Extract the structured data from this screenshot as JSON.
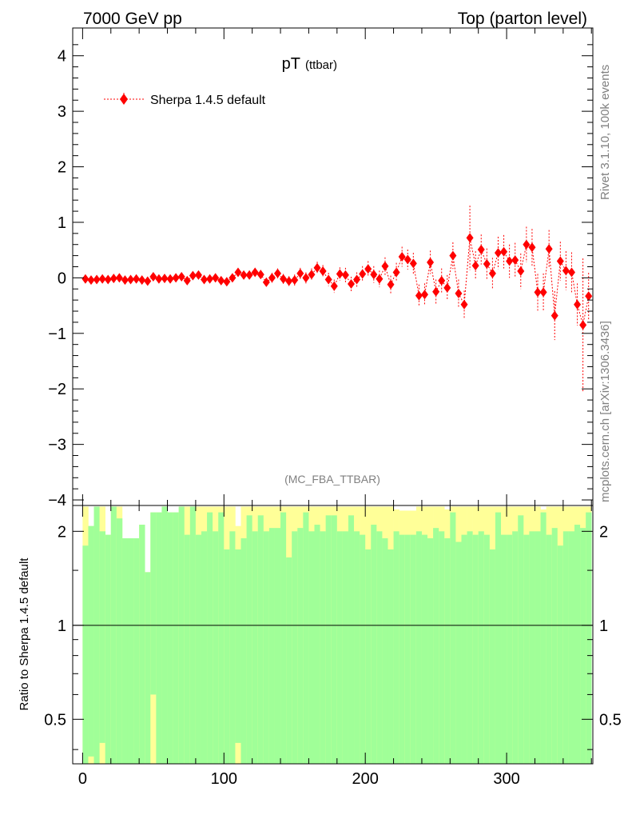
{
  "header": {
    "left": "7000 GeV pp",
    "right": "Top (parton level)"
  },
  "side_labels": {
    "rivet": "Rivet 3.1.10,  100k events",
    "mcplots": "mcplots.cern.ch [arXiv:1306.3436]"
  },
  "main_plot": {
    "title_main": "pT",
    "title_sub": "(ttbar)",
    "analysis_label": "(MC_FBA_TTBAR)",
    "legend_label": "Sherpa 1.4.5 default"
  },
  "ratio_plot": {
    "ylabel": "Ratio to Sherpa 1.4.5 default",
    "reference_line": 1
  },
  "colors": {
    "series": "#ff0000",
    "band_inner": "#a0ff98",
    "band_outer": "#ffff98"
  },
  "chart_data": [
    {
      "type": "scatter",
      "series": [
        {
          "name": "Sherpa 1.4.5 default",
          "x": [
            2,
            6,
            10,
            14,
            18,
            22,
            26,
            30,
            34,
            38,
            42,
            46,
            50,
            54,
            58,
            62,
            66,
            70,
            74,
            78,
            82,
            86,
            90,
            94,
            98,
            102,
            106,
            110,
            114,
            118,
            122,
            126,
            130,
            134,
            138,
            142,
            146,
            150,
            154,
            158,
            162,
            166,
            170,
            174,
            178,
            182,
            186,
            190,
            194,
            198,
            202,
            206,
            210,
            214,
            218,
            222,
            226,
            230,
            234,
            238,
            242,
            246,
            250,
            254,
            258,
            262,
            266,
            270,
            274,
            278,
            282,
            286,
            290,
            294,
            298,
            302,
            306,
            310,
            314,
            318,
            322,
            326,
            330,
            334,
            338,
            342,
            346,
            350,
            354,
            358
          ],
          "y": [
            -0.02,
            -0.04,
            -0.03,
            -0.02,
            -0.03,
            -0.01,
            0.0,
            -0.04,
            -0.03,
            -0.02,
            -0.04,
            -0.06,
            0.02,
            -0.02,
            -0.01,
            -0.02,
            0.0,
            0.02,
            -0.05,
            0.04,
            0.05,
            -0.03,
            -0.02,
            0.0,
            -0.05,
            -0.07,
            0.0,
            0.1,
            0.05,
            0.05,
            0.1,
            0.06,
            -0.08,
            0.0,
            0.08,
            -0.02,
            -0.06,
            -0.04,
            0.08,
            0.0,
            0.06,
            0.18,
            0.12,
            -0.03,
            -0.15,
            0.07,
            0.05,
            -0.11,
            -0.03,
            0.07,
            0.16,
            0.06,
            -0.02,
            0.21,
            -0.12,
            0.1,
            0.38,
            0.33,
            0.26,
            -0.32,
            -0.3,
            0.28,
            -0.25,
            -0.05,
            -0.18,
            0.4,
            -0.28,
            -0.48,
            0.72,
            0.22,
            0.51,
            0.25,
            0.08,
            0.45,
            0.47,
            0.3,
            0.32,
            0.12,
            0.6,
            0.55,
            -0.26,
            -0.26,
            0.52,
            -0.68,
            0.3,
            0.13,
            0.1,
            -0.48,
            -0.85,
            -0.33
          ],
          "yerr": [
            0.03,
            0.03,
            0.03,
            0.03,
            0.03,
            0.03,
            0.04,
            0.04,
            0.04,
            0.04,
            0.04,
            0.05,
            0.05,
            0.05,
            0.05,
            0.05,
            0.05,
            0.06,
            0.06,
            0.06,
            0.06,
            0.06,
            0.06,
            0.06,
            0.07,
            0.07,
            0.07,
            0.07,
            0.07,
            0.08,
            0.08,
            0.08,
            0.08,
            0.09,
            0.09,
            0.09,
            0.09,
            0.1,
            0.1,
            0.1,
            0.11,
            0.11,
            0.11,
            0.12,
            0.12,
            0.12,
            0.13,
            0.13,
            0.13,
            0.14,
            0.14,
            0.15,
            0.15,
            0.16,
            0.16,
            0.17,
            0.18,
            0.18,
            0.19,
            0.2,
            0.2,
            0.21,
            0.22,
            0.22,
            0.23,
            0.24,
            0.25,
            0.25,
            0.58,
            0.26,
            0.27,
            0.28,
            0.28,
            0.29,
            0.3,
            0.3,
            0.31,
            0.32,
            0.32,
            0.33,
            0.33,
            0.34,
            0.34,
            0.44,
            0.35,
            0.35,
            0.36,
            0.38,
            1.2,
            0.42
          ]
        }
      ],
      "xlim": [
        -7,
        361
      ],
      "ylim": [
        -4.1,
        4.5
      ],
      "yticks": [
        -4,
        -3,
        -2,
        -1,
        0,
        1,
        2,
        3,
        4
      ],
      "ytick_labels": [
        "−4",
        "−3",
        "−2",
        "−1",
        "0",
        "1",
        "2",
        "3",
        "4"
      ],
      "legend_position": "top-left",
      "grid": false
    },
    {
      "type": "area",
      "x_edges_start": 0,
      "bin_width": 4,
      "band_outer_top": [
        2.4,
        2.08,
        2.4,
        2.4,
        1.95,
        2.4,
        2.4,
        1.9,
        1.9,
        1.9,
        2.1,
        1.48,
        2.3,
        2.3,
        2.4,
        2.3,
        2.3,
        2.4,
        2.4,
        2.4,
        2.4,
        2.4,
        2.4,
        2.4,
        2.4,
        2.4,
        2.4,
        2.08,
        2.4,
        2.4,
        2.4,
        2.4,
        2.4,
        2.4,
        2.4,
        2.4,
        2.4,
        2.4,
        2.4,
        2.4,
        2.4,
        2.4,
        2.4,
        2.4,
        2.4,
        2.4,
        2.4,
        2.4,
        2.4,
        2.4,
        2.4,
        2.4,
        2.4,
        2.4,
        2.4,
        2.35,
        2.33,
        2.33,
        2.33,
        2.4,
        2.4,
        2.4,
        2.4,
        2.4,
        2.35,
        2.4,
        2.4,
        2.4,
        2.4,
        2.4,
        2.4,
        2.4,
        2.4,
        2.4,
        2.4,
        2.4,
        2.4,
        2.4,
        2.4,
        2.4,
        2.4,
        2.35,
        2.4,
        2.4,
        2.4,
        2.4,
        2.4,
        2.4,
        2.4,
        2.4
      ],
      "band_inner_top": [
        1.8,
        2.08,
        2.4,
        2.0,
        1.95,
        2.4,
        2.2,
        1.9,
        1.9,
        1.9,
        2.1,
        1.48,
        2.3,
        2.3,
        2.4,
        2.3,
        2.3,
        2.4,
        1.95,
        2.4,
        1.95,
        2.0,
        2.3,
        2.0,
        2.3,
        1.75,
        2.0,
        1.75,
        1.9,
        2.25,
        2.0,
        2.25,
        2.0,
        2.05,
        2.05,
        2.3,
        1.65,
        2.0,
        2.05,
        2.3,
        2.0,
        2.1,
        2.0,
        2.25,
        2.25,
        2.0,
        2.0,
        2.25,
        2.0,
        1.95,
        1.75,
        2.1,
        2.0,
        1.9,
        1.75,
        2.0,
        1.95,
        1.95,
        1.95,
        2.0,
        1.95,
        1.9,
        2.05,
        2.0,
        1.9,
        2.3,
        1.85,
        1.95,
        2.0,
        1.95,
        2.0,
        1.95,
        1.75,
        2.3,
        1.95,
        1.95,
        2.0,
        2.25,
        1.95,
        2.0,
        2.0,
        2.3,
        1.95,
        2.05,
        1.8,
        2.0,
        2.0,
        2.1,
        2.05,
        2.3
      ],
      "band_inner_bottom_lowbins": {
        "indices": [
          1,
          3,
          12,
          27
        ],
        "values": [
          0.38,
          0.42,
          0.6,
          0.42
        ]
      },
      "xlim": [
        -7,
        361
      ],
      "ylim": [
        0.36,
        2.42
      ],
      "yscale": "log",
      "yticks": [
        0.5,
        1,
        2
      ],
      "ytick_labels": [
        "0.5",
        "1",
        "2"
      ],
      "xticks": [
        0,
        100,
        200,
        300
      ],
      "xtick_labels": [
        "0",
        "100",
        "200",
        "300"
      ]
    }
  ]
}
